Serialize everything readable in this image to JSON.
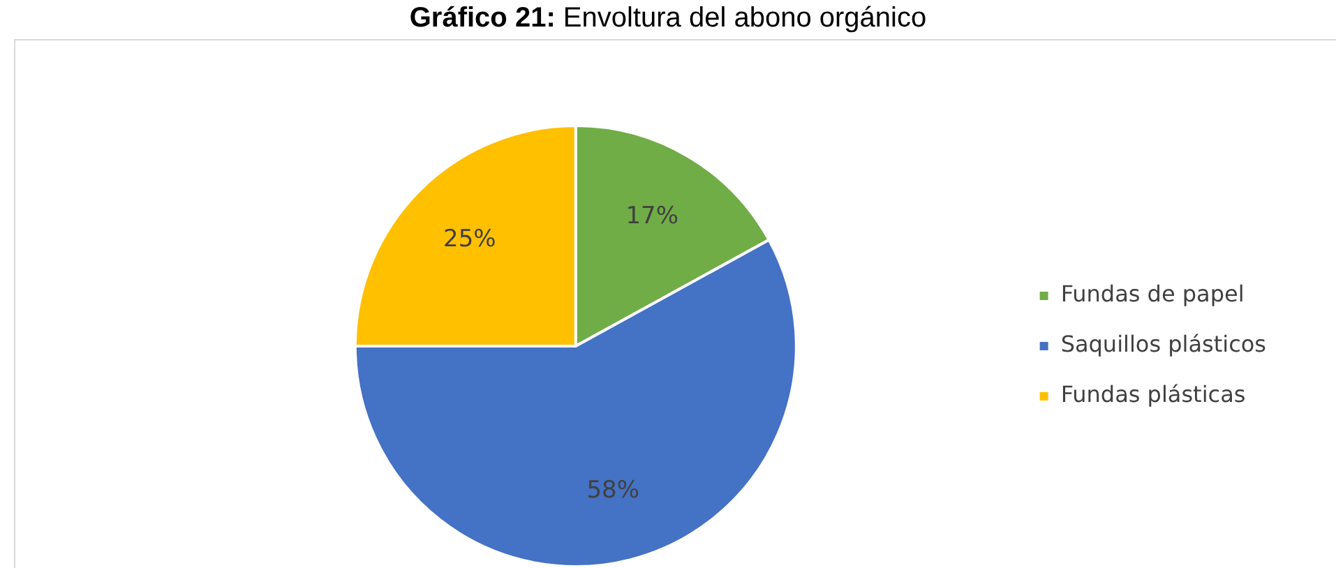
{
  "chart_data": {
    "type": "pie",
    "title": "Gráfico 21: Envoltura del abono orgánico",
    "categories": [
      "Fundas de papel",
      "Saquillos plásticos",
      "Fundas plásticas"
    ],
    "values": [
      17,
      58,
      25
    ],
    "colors": [
      "#70ad47",
      "#4472c4",
      "#ffc000"
    ],
    "value_labels": [
      "17%",
      "58%",
      "25%"
    ],
    "legend": "right"
  }
}
